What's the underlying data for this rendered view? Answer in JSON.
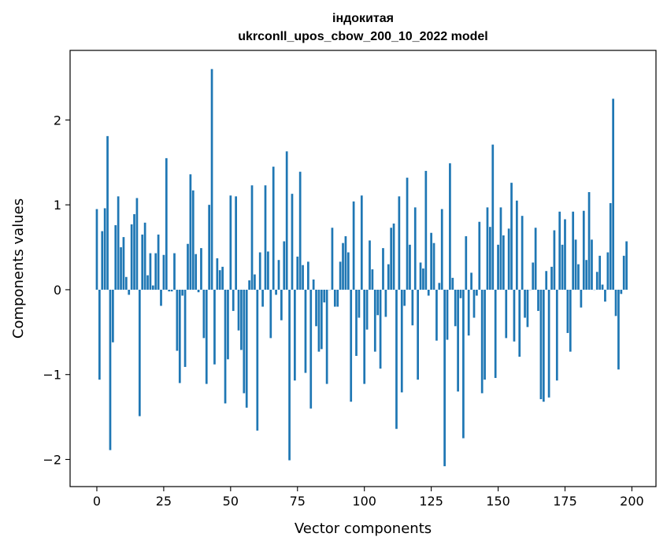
{
  "chart_data": {
    "type": "bar",
    "title_line1": "індокитая",
    "title_line2": "ukrconll_upos_cbow_200_10_2022 model",
    "xlabel": "Vector components",
    "ylabel": "Components values",
    "xlim": [
      -10,
      209
    ],
    "ylim": [
      -2.32,
      2.82
    ],
    "xticks": [
      0,
      25,
      50,
      75,
      100,
      125,
      150,
      175,
      200
    ],
    "xtick_labels": [
      "0",
      "25",
      "50",
      "75",
      "100",
      "125",
      "150",
      "175",
      "200"
    ],
    "yticks": [
      -2,
      -1,
      0,
      1,
      2
    ],
    "ytick_labels": [
      "−2",
      "−1",
      "0",
      "1",
      "2"
    ],
    "bar_color": "#1f77b4",
    "values": [
      0.95,
      -1.06,
      0.69,
      0.96,
      1.81,
      -1.89,
      -0.62,
      0.76,
      1.1,
      0.5,
      0.62,
      0.15,
      -0.06,
      0.77,
      0.89,
      1.08,
      -1.49,
      0.65,
      0.79,
      0.17,
      0.43,
      0.05,
      0.43,
      0.65,
      -0.19,
      0.41,
      1.55,
      -0.02,
      -0.02,
      0.43,
      -0.72,
      -1.1,
      -0.07,
      -0.91,
      0.54,
      1.36,
      1.17,
      0.42,
      -0.03,
      0.49,
      -0.57,
      -1.11,
      1.0,
      2.6,
      -0.88,
      0.37,
      0.23,
      0.27,
      -1.34,
      -0.82,
      1.11,
      -0.25,
      1.1,
      -0.48,
      -0.71,
      -1.22,
      -1.39,
      0.11,
      1.23,
      0.18,
      -1.66,
      0.44,
      -0.2,
      1.23,
      0.45,
      -0.57,
      1.45,
      -0.06,
      0.35,
      -0.36,
      0.57,
      1.63,
      -2.01,
      1.13,
      -1.07,
      0.39,
      1.39,
      0.29,
      -0.98,
      0.33,
      -1.4,
      0.12,
      -0.43,
      -0.73,
      -0.7,
      -0.15,
      -1.11,
      0.0,
      0.73,
      -0.2,
      -0.2,
      0.33,
      0.55,
      0.63,
      0.44,
      -1.32,
      1.04,
      -0.78,
      -0.33,
      1.11,
      -1.11,
      -0.47,
      0.58,
      0.24,
      -0.73,
      -0.3,
      -0.93,
      0.49,
      -0.32,
      0.3,
      0.73,
      0.78,
      -1.64,
      1.1,
      -1.21,
      -0.19,
      1.32,
      0.53,
      -0.42,
      0.97,
      -1.06,
      0.32,
      0.25,
      1.4,
      -0.07,
      0.67,
      0.55,
      -0.6,
      0.08,
      0.95,
      -2.08,
      -0.59,
      1.49,
      0.14,
      -0.43,
      -1.2,
      -0.1,
      -1.75,
      0.63,
      -0.54,
      0.2,
      -0.33,
      -0.07,
      0.8,
      -1.22,
      -1.06,
      0.97,
      0.74,
      1.71,
      -1.04,
      0.53,
      0.97,
      0.64,
      -0.57,
      0.72,
      1.26,
      -0.61,
      1.05,
      -0.79,
      0.87,
      -0.33,
      -0.44,
      0.0,
      0.32,
      0.73,
      -0.25,
      -1.29,
      -1.32,
      0.22,
      -1.27,
      0.27,
      0.7,
      -1.07,
      0.92,
      0.53,
      0.83,
      -0.51,
      -0.73,
      0.92,
      0.59,
      0.3,
      -0.21,
      0.93,
      0.35,
      1.15,
      0.59,
      0.0,
      0.21,
      0.4,
      0.06,
      -0.14,
      0.44,
      1.02,
      2.25,
      -0.31,
      -0.94,
      -0.05,
      0.4,
      0.57
    ]
  }
}
